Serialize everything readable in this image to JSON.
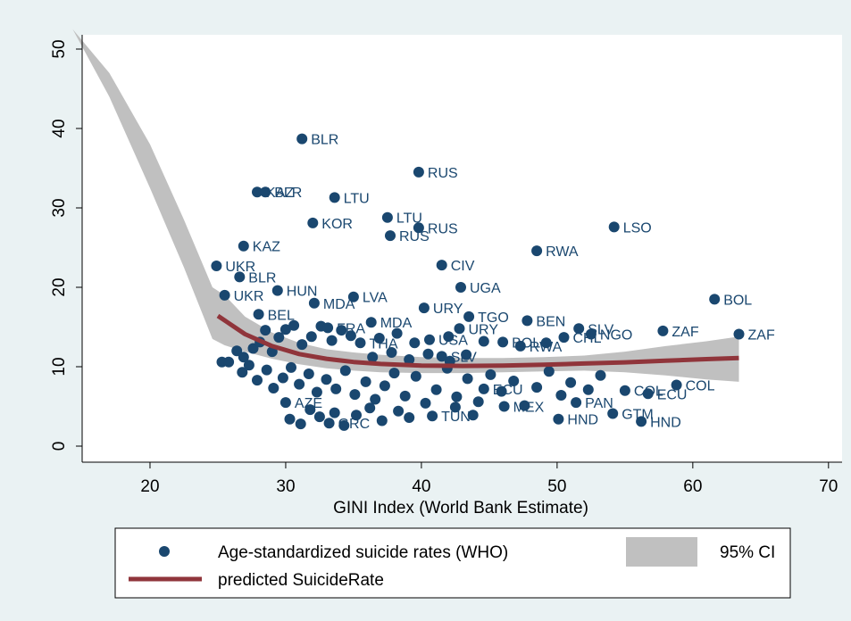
{
  "chart_data": {
    "type": "scatter",
    "xlabel": "GINI Index (World Bank Estimate)",
    "ylabel": "",
    "xlim": [
      15,
      71
    ],
    "ylim": [
      -2,
      51.5
    ],
    "xticks": [
      20,
      30,
      40,
      50,
      60,
      70
    ],
    "yticks": [
      0,
      10,
      20,
      30,
      40,
      50
    ],
    "grid": false,
    "legend_position": "bottom",
    "colors": {
      "points": "#1a476f",
      "fit": "#90353b",
      "ci": "#c0c0c0",
      "background": "#eaf2f3",
      "plot_bg": "#ffffff"
    },
    "series": [
      {
        "name": "Age-standardized suicide rates (WHO)",
        "labeled_points": [
          {
            "label": "BLR",
            "x": 31.2,
            "y": 38.7
          },
          {
            "label": "RUS",
            "x": 39.8,
            "y": 34.5
          },
          {
            "label": "KAZ",
            "x": 27.9,
            "y": 32
          },
          {
            "label": "BLR",
            "x": 28.5,
            "y": 32
          },
          {
            "label": "LTU",
            "x": 33.6,
            "y": 31.3
          },
          {
            "label": "LTU",
            "x": 37.5,
            "y": 28.8
          },
          {
            "label": "KOR",
            "x": 32,
            "y": 28.1
          },
          {
            "label": "RUS",
            "x": 39.8,
            "y": 27.5
          },
          {
            "label": "RUS",
            "x": 37.7,
            "y": 26.5
          },
          {
            "label": "LSO",
            "x": 54.2,
            "y": 27.6
          },
          {
            "label": "KAZ",
            "x": 26.9,
            "y": 25.2
          },
          {
            "label": "RWA",
            "x": 48.5,
            "y": 24.6
          },
          {
            "label": "CIV",
            "x": 41.5,
            "y": 22.8
          },
          {
            "label": "UKR",
            "x": 24.9,
            "y": 22.7
          },
          {
            "label": "BLR",
            "x": 26.6,
            "y": 21.3
          },
          {
            "label": "UGA",
            "x": 42.9,
            "y": 20
          },
          {
            "label": "HUN",
            "x": 29.4,
            "y": 19.6
          },
          {
            "label": "UKR",
            "x": 25.5,
            "y": 19
          },
          {
            "label": "LVA",
            "x": 35,
            "y": 18.8
          },
          {
            "label": "BOL",
            "x": 61.6,
            "y": 18.5
          },
          {
            "label": "MDA",
            "x": 32.1,
            "y": 18
          },
          {
            "label": "URY",
            "x": 40.2,
            "y": 17.4
          },
          {
            "label": "BEL",
            "x": 28,
            "y": 16.6
          },
          {
            "label": "TGO",
            "x": 43.5,
            "y": 16.3
          },
          {
            "label": "BEN",
            "x": 47.8,
            "y": 15.8
          },
          {
            "label": "MDA",
            "x": 36.3,
            "y": 15.6
          },
          {
            "label": "FRA",
            "x": 33.1,
            "y": 14.9
          },
          {
            "label": "SLV",
            "x": 51.6,
            "y": 14.8
          },
          {
            "label": "URY",
            "x": 42.8,
            "y": 14.8
          },
          {
            "label": "ZAF",
            "x": 57.8,
            "y": 14.5
          },
          {
            "label": "ZAF",
            "x": 63.4,
            "y": 14.1
          },
          {
            "label": "NGO",
            "x": 52.5,
            "y": 14.1
          },
          {
            "label": "CHL",
            "x": 50.5,
            "y": 13.7
          },
          {
            "label": "THA",
            "x": 35.5,
            "y": 13
          },
          {
            "label": "USA",
            "x": 40.6,
            "y": 13.4
          },
          {
            "label": "BOL",
            "x": 46,
            "y": 13.1
          },
          {
            "label": "RWA",
            "x": 47.3,
            "y": 12.6
          },
          {
            "label": "SLV",
            "x": 41.5,
            "y": 11.3
          },
          {
            "label": "COL",
            "x": 58.8,
            "y": 7.7
          },
          {
            "label": "COL",
            "x": 55,
            "y": 7
          },
          {
            "label": "ECU",
            "x": 56.7,
            "y": 6.6
          },
          {
            "label": "ECU",
            "x": 44.6,
            "y": 7.2
          },
          {
            "label": "PAN",
            "x": 51.4,
            "y": 5.5
          },
          {
            "label": "MEX",
            "x": 46.1,
            "y": 5
          },
          {
            "label": "TUN",
            "x": 40.8,
            "y": 3.8
          },
          {
            "label": "GTM",
            "x": 54.1,
            "y": 4.1
          },
          {
            "label": "HND",
            "x": 56.2,
            "y": 3.1
          },
          {
            "label": "HND",
            "x": 50.1,
            "y": 3.4
          },
          {
            "label": "GRC",
            "x": 33.2,
            "y": 2.9
          },
          {
            "label": "AZE",
            "x": 30,
            "y": 5.5
          }
        ],
        "unlabeled_points": [
          {
            "x": 25.3,
            "y": 10.6
          },
          {
            "x": 25.8,
            "y": 10.6
          },
          {
            "x": 26.4,
            "y": 12
          },
          {
            "x": 26.9,
            "y": 11.2
          },
          {
            "x": 27.3,
            "y": 10.2
          },
          {
            "x": 27.6,
            "y": 12.3
          },
          {
            "x": 28.1,
            "y": 13.1
          },
          {
            "x": 28.5,
            "y": 14.6
          },
          {
            "x": 29,
            "y": 11.9
          },
          {
            "x": 29.5,
            "y": 13.7
          },
          {
            "x": 30,
            "y": 14.7
          },
          {
            "x": 30.6,
            "y": 15.2
          },
          {
            "x": 31.2,
            "y": 12.8
          },
          {
            "x": 31.9,
            "y": 13.8
          },
          {
            "x": 32.6,
            "y": 15.1
          },
          {
            "x": 33.4,
            "y": 13.3
          },
          {
            "x": 34.1,
            "y": 14.6
          },
          {
            "x": 34.8,
            "y": 13.9
          },
          {
            "x": 36.9,
            "y": 13.6
          },
          {
            "x": 38.2,
            "y": 14.2
          },
          {
            "x": 39.5,
            "y": 13
          },
          {
            "x": 42,
            "y": 13.8
          },
          {
            "x": 44.6,
            "y": 13.2
          },
          {
            "x": 49.2,
            "y": 13
          },
          {
            "x": 26.8,
            "y": 9.3
          },
          {
            "x": 27.9,
            "y": 8.3
          },
          {
            "x": 28.6,
            "y": 9.6
          },
          {
            "x": 29.1,
            "y": 7.3
          },
          {
            "x": 29.8,
            "y": 8.6
          },
          {
            "x": 30.4,
            "y": 9.9
          },
          {
            "x": 31,
            "y": 7.8
          },
          {
            "x": 31.7,
            "y": 9.1
          },
          {
            "x": 32.3,
            "y": 6.8
          },
          {
            "x": 33,
            "y": 8.4
          },
          {
            "x": 33.7,
            "y": 7.2
          },
          {
            "x": 34.4,
            "y": 9.5
          },
          {
            "x": 35.1,
            "y": 6.5
          },
          {
            "x": 35.9,
            "y": 8.1
          },
          {
            "x": 36.6,
            "y": 5.9
          },
          {
            "x": 37.3,
            "y": 7.6
          },
          {
            "x": 38,
            "y": 9.2
          },
          {
            "x": 38.8,
            "y": 6.3
          },
          {
            "x": 39.6,
            "y": 8.8
          },
          {
            "x": 40.3,
            "y": 5.4
          },
          {
            "x": 41.1,
            "y": 7.1
          },
          {
            "x": 41.9,
            "y": 9.8
          },
          {
            "x": 42.6,
            "y": 6.2
          },
          {
            "x": 43.4,
            "y": 8.5
          },
          {
            "x": 44.2,
            "y": 5.6
          },
          {
            "x": 45.1,
            "y": 9
          },
          {
            "x": 45.9,
            "y": 6.9
          },
          {
            "x": 46.8,
            "y": 8.2
          },
          {
            "x": 47.6,
            "y": 5.1
          },
          {
            "x": 48.5,
            "y": 7.4
          },
          {
            "x": 49.4,
            "y": 9.4
          },
          {
            "x": 50.3,
            "y": 6.4
          },
          {
            "x": 51,
            "y": 8
          },
          {
            "x": 52.3,
            "y": 7.1
          },
          {
            "x": 53.2,
            "y": 8.9
          },
          {
            "x": 30.3,
            "y": 3.4
          },
          {
            "x": 31.1,
            "y": 2.8
          },
          {
            "x": 31.8,
            "y": 4.6
          },
          {
            "x": 32.5,
            "y": 3.7
          },
          {
            "x": 33.6,
            "y": 4.2
          },
          {
            "x": 34.3,
            "y": 2.6
          },
          {
            "x": 35.2,
            "y": 3.9
          },
          {
            "x": 36.2,
            "y": 4.8
          },
          {
            "x": 37.1,
            "y": 3.2
          },
          {
            "x": 38.3,
            "y": 4.4
          },
          {
            "x": 39.1,
            "y": 3.6
          },
          {
            "x": 42.5,
            "y": 4.9
          },
          {
            "x": 43.8,
            "y": 3.9
          },
          {
            "x": 36.4,
            "y": 11.2
          },
          {
            "x": 37.8,
            "y": 11.8
          },
          {
            "x": 39.1,
            "y": 10.9
          },
          {
            "x": 40.5,
            "y": 11.6
          },
          {
            "x": 42.1,
            "y": 10.7
          },
          {
            "x": 43.3,
            "y": 11.5
          }
        ]
      },
      {
        "name": "predicted SuicideRate",
        "x": [
          25,
          27,
          29,
          31,
          33,
          35,
          37,
          40,
          43,
          46,
          49,
          52,
          55,
          58,
          61,
          63.4
        ],
        "y": [
          16.4,
          14.1,
          12.6,
          11.6,
          11,
          10.6,
          10.35,
          10.15,
          10.1,
          10.15,
          10.25,
          10.4,
          10.55,
          10.75,
          10.95,
          11.1
        ]
      },
      {
        "name": "95% CI",
        "x": [
          14.3,
          17,
          20,
          22.5,
          24.6,
          25.5,
          27,
          29,
          31,
          33,
          35,
          37,
          40,
          43,
          46,
          49,
          52,
          55,
          58,
          61,
          63.4
        ],
        "lower": [
          52.5,
          44,
          32.5,
          22.5,
          13.5,
          12.7,
          11.9,
          11,
          10.3,
          9.8,
          9.5,
          9.3,
          9.2,
          9.2,
          9.3,
          9.4,
          9.5,
          9.3,
          8.9,
          8.4,
          8.1
        ],
        "upper": [
          52.5,
          47,
          38,
          28.5,
          20,
          19,
          16.3,
          14.3,
          13,
          12.2,
          11.8,
          11.5,
          11.2,
          11.1,
          11.1,
          11.2,
          11.4,
          11.9,
          12.6,
          13.2,
          13.8
        ]
      }
    ]
  },
  "legend": {
    "items": [
      {
        "label": "Age-standardized suicide rates (WHO)"
      },
      {
        "label": "95% CI"
      },
      {
        "label": "predicted SuicideRate"
      }
    ]
  }
}
